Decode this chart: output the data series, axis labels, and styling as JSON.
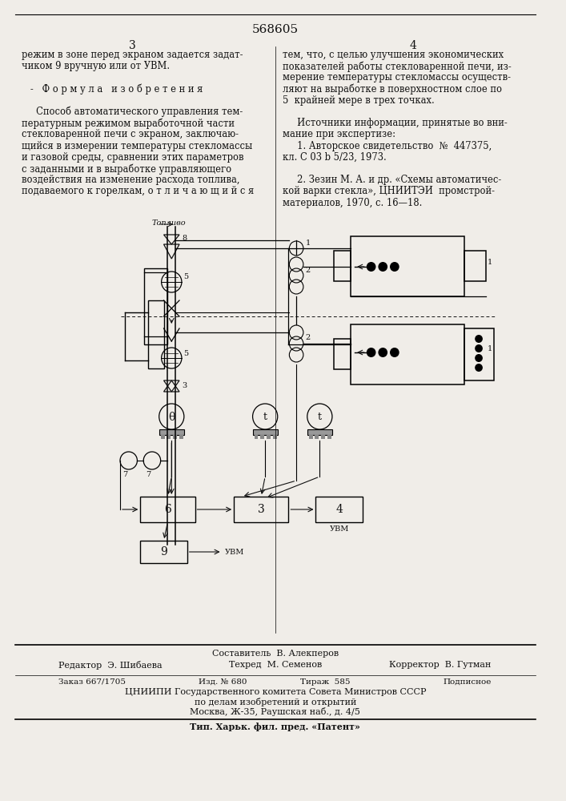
{
  "title_number": "568605",
  "page_left": "3",
  "page_right": "4",
  "col_left_text": [
    "режим в зоне перед экраном задается задат-",
    "чиком 9 вручную или от УВМ.",
    "",
    "   -   Ф о р м у л а   и з о б р е т е н и я",
    "",
    "     Способ автоматического управления тем-",
    "пературным режимом выработочной части",
    "стекловаренной печи с экраном, заключаю-",
    "щийся в измерении температуры стекломассы",
    "и газовой среды, сравнении этих параметров",
    "с заданными и в выработке управляющего",
    "воздействия на изменение расхода топлива,",
    "подаваемого к горелкам, о т л и ч а ю щ и й с я"
  ],
  "col_right_text": [
    "тем, что, с целью улучшения экономических",
    "показателей работы стекловаренной печи, из-",
    "мерение температуры стекломассы осуществ-",
    "ляют на выработке в поверхностном слое по",
    "5  крайней мере в трех точках.",
    "",
    "     Источники информации, принятые во вни-",
    "мание при экспертизе:",
    "     1. Авторское свидетельство  №  447375,",
    "кл. С 03 b 5/23, 1973.",
    "",
    "     2. Зезин М. А. и др. «Схемы автоматичес-",
    "кой варки стекла», ЦНИИТЭИ  промстрой-",
    "материалов, 1970, с. 16—18."
  ],
  "footer_composer": "Составитель  В. Алекперов",
  "footer_editor": "Редактор  Э. Шибаева",
  "footer_techred": "Техред  М. Семенов",
  "footer_corrector": "Корректор  В. Гутман",
  "footer_order": "Заказ 667/1705",
  "footer_issue": "Изд. № 680",
  "footer_tirage": "Тираж  585",
  "footer_podp": "Подписное",
  "footer_org": "ЦНИИПИ Государственного комитета Совета Министров СССР",
  "footer_org2": "по делам изобретений и открытий",
  "footer_addr": "Москва, Ж-35, Раушская наб., д. 4/5",
  "footer_tip": "Тип. Харьк. фил. пред. «Патент»",
  "bg_color": "#f0ede8",
  "text_color": "#111111"
}
